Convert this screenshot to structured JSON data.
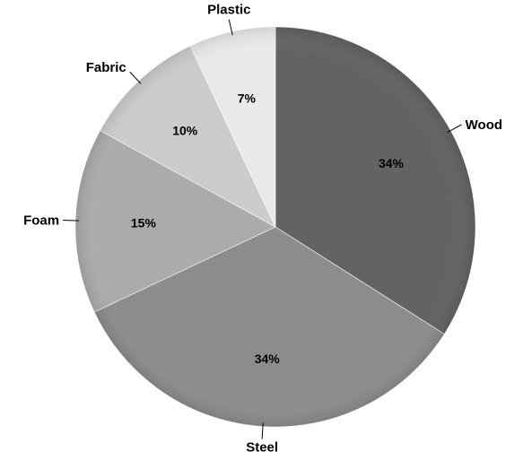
{
  "chart_data": {
    "type": "pie",
    "title": "",
    "start": "12 o'clock, clockwise",
    "legend": "none (category labels outside slices with leader lines)",
    "slices": [
      {
        "label": "Wood",
        "value": 34,
        "value_label": "34%",
        "color": "#636363"
      },
      {
        "label": "Steel",
        "value": 34,
        "value_label": "34%",
        "color": "#8c8c8c"
      },
      {
        "label": "Foam",
        "value": 15,
        "value_label": "15%",
        "color": "#ababab"
      },
      {
        "label": "Fabric",
        "value": 10,
        "value_label": "10%",
        "color": "#cbcbcb"
      },
      {
        "label": "Plastic",
        "value": 7,
        "value_label": "7%",
        "color": "#e9e9e9"
      }
    ]
  }
}
